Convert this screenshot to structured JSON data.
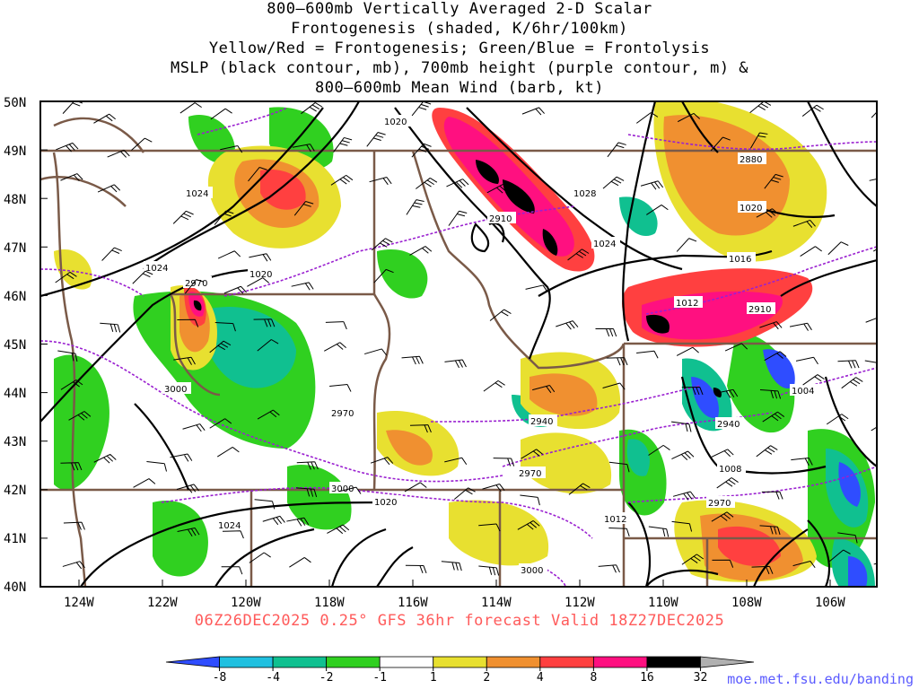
{
  "title_lines": [
    "800–600mb Vertically Averaged 2-D Scalar",
    "Frontogenesis (shaded, K/6hr/100km)",
    "Yellow/Red = Frontogenesis;  Green/Blue = Frontolysis",
    "MSLP (black contour, mb), 700mb height (purple contour, m) &",
    "800–600mb Mean Wind (barb, kt)"
  ],
  "footer": "06Z26DEC2025 0.25° GFS 36hr forecast Valid 18Z27DEC2025",
  "credit": "moe.met.fsu.edu/banding",
  "lat_labels": [
    "50N",
    "49N",
    "48N",
    "47N",
    "46N",
    "45N",
    "44N",
    "43N",
    "42N",
    "41N",
    "40N"
  ],
  "lon_labels": [
    "124W",
    "122W",
    "120W",
    "118W",
    "116W",
    "114W",
    "112W",
    "110W",
    "108W",
    "106W"
  ],
  "colorbar": {
    "levels": [
      "-8",
      "-4",
      "-2",
      "-1",
      "1",
      "2",
      "4",
      "8",
      "16",
      "32"
    ],
    "colors": [
      "#2f4dff",
      "#20c0e0",
      "#10c090",
      "#30d020",
      "#ffffff",
      "#e8e030",
      "#f09030",
      "#ff4040",
      "#ff1080",
      "#000000",
      "#b0b0b0"
    ]
  },
  "contour_labels": {
    "mslp": [
      "1020",
      "1028",
      "1024",
      "1016",
      "1012",
      "1024",
      "1024",
      "1020",
      "1020",
      "1004",
      "1008",
      "1012",
      "1020",
      "1024"
    ],
    "height": [
      "2880",
      "2910",
      "2910",
      "2970",
      "3000",
      "2970",
      "2940",
      "2940",
      "2970",
      "3000",
      "2970",
      "3000"
    ]
  }
}
